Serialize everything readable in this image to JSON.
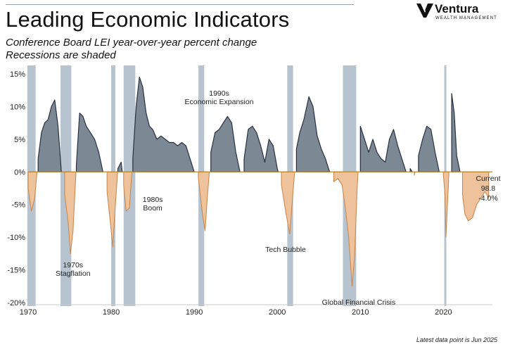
{
  "header": {
    "title": "Leading Economic Indicators",
    "subtitle_line1": "Conference Board LEI year-over-year percent change",
    "subtitle_line2": "Recessions are shaded"
  },
  "logo": {
    "name": "Ventura",
    "tagline": "WEALTH MANAGEMENT",
    "icon": "ventura-v-icon"
  },
  "footnote": "Latest data point is Jun 2025",
  "colors": {
    "positive_fill": "#7d8895",
    "positive_line": "#283040",
    "negative_fill": "#eec39b",
    "negative_line": "#c98a52",
    "recession": "#b7c4cf",
    "zero_line": "#b8862b"
  },
  "chart_data": {
    "type": "area",
    "title": "Leading Economic Indicators",
    "subtitle": "Conference Board LEI year-over-year percent change",
    "xlabel": "",
    "ylabel": "",
    "xlim": [
      1970,
      2025.9
    ],
    "ylim": [
      -20,
      15
    ],
    "x_ticks": [
      1970,
      1980,
      1990,
      2000,
      2010,
      2020
    ],
    "y_ticks": [
      {
        "value": 15,
        "label": "15%"
      },
      {
        "value": 10,
        "label": "10%"
      },
      {
        "value": 5,
        "label": "5%"
      },
      {
        "value": 0,
        "label": "0%"
      },
      {
        "value": -5,
        "label": "-5%"
      },
      {
        "value": -10,
        "label": "-10%"
      },
      {
        "value": -15,
        "label": "-15%"
      },
      {
        "value": -20,
        "label": "-20%"
      }
    ],
    "grid": false,
    "recessions": [
      [
        1969.9,
        1970.9
      ],
      [
        1973.9,
        1975.2
      ],
      [
        1980.0,
        1980.5
      ],
      [
        1981.5,
        1982.9
      ],
      [
        1990.5,
        1991.2
      ],
      [
        2001.2,
        2001.9
      ],
      [
        2007.9,
        2009.5
      ],
      [
        2020.1,
        2020.35
      ]
    ],
    "series": [
      {
        "name": "",
        "x": [
          1970.0,
          1970.4,
          1970.8,
          1971.2,
          1971.6,
          1972.0,
          1972.4,
          1972.8,
          1973.2,
          1973.6,
          1974.0,
          1974.4,
          1974.8,
          1975.1,
          1975.4,
          1975.8,
          1976.2,
          1976.6,
          1977.0,
          1977.5,
          1978.0,
          1978.5,
          1979.0,
          1979.5,
          1980.0,
          1980.2,
          1980.4,
          1980.8,
          1981.2,
          1981.5,
          1981.8,
          1982.2,
          1982.6,
          1983.0,
          1983.4,
          1983.8,
          1984.2,
          1984.6,
          1985.0,
          1985.5,
          1986.0,
          1986.5,
          1987.0,
          1987.5,
          1988.0,
          1988.5,
          1989.0,
          1989.5,
          1990.0,
          1990.5,
          1991.0,
          1991.3,
          1991.6,
          1992.0,
          1992.5,
          1993.0,
          1993.5,
          1994.0,
          1994.5,
          1995.0,
          1995.5,
          1996.0,
          1996.5,
          1997.0,
          1997.5,
          1998.0,
          1998.5,
          1999.0,
          1999.5,
          2000.0,
          2000.5,
          2001.0,
          2001.5,
          2001.9,
          2002.3,
          2002.7,
          2003.2,
          2003.8,
          2004.3,
          2004.8,
          2005.3,
          2005.8,
          2006.3,
          2006.8,
          2007.3,
          2007.8,
          2008.2,
          2008.6,
          2009.0,
          2009.3,
          2009.6,
          2010.0,
          2010.5,
          2011.0,
          2011.5,
          2012.0,
          2012.5,
          2013.0,
          2013.5,
          2014.0,
          2014.5,
          2015.0,
          2015.5,
          2016.0,
          2016.5,
          2017.0,
          2017.5,
          2018.0,
          2018.5,
          2019.0,
          2019.5,
          2020.0,
          2020.2,
          2020.3,
          2020.6,
          2021.0,
          2021.3,
          2021.6,
          2022.0,
          2022.3,
          2022.6,
          2023.0,
          2023.5,
          2024.0,
          2024.5,
          2025.0,
          2025.45
        ],
        "values": [
          -2.5,
          -6.0,
          -4.0,
          2.0,
          6.0,
          7.5,
          8.0,
          10.0,
          11.0,
          7.0,
          0.0,
          -3.5,
          -7.5,
          -12.5,
          -9.0,
          1.0,
          9.0,
          8.5,
          7.0,
          6.0,
          5.0,
          3.0,
          0.0,
          -3.0,
          -9.0,
          -11.5,
          -7.0,
          0.5,
          1.5,
          -2.0,
          -6.0,
          -5.5,
          2.0,
          10.0,
          14.5,
          13.0,
          9.0,
          7.0,
          6.5,
          5.0,
          5.5,
          5.0,
          4.5,
          4.5,
          4.0,
          4.5,
          4.0,
          2.0,
          0.0,
          -1.0,
          -6.5,
          -9.0,
          -3.5,
          3.0,
          6.0,
          6.5,
          7.5,
          8.5,
          7.5,
          3.0,
          0.0,
          2.0,
          6.5,
          7.0,
          6.0,
          4.0,
          1.5,
          5.0,
          4.0,
          0.5,
          -2.0,
          -6.0,
          -9.5,
          -3.0,
          3.5,
          6.0,
          8.0,
          11.5,
          10.0,
          5.5,
          3.5,
          2.0,
          0.0,
          -1.5,
          -1.0,
          -2.0,
          -5.5,
          -10.0,
          -17.5,
          -13.0,
          -3.0,
          7.0,
          5.0,
          3.0,
          5.0,
          3.0,
          2.0,
          1.5,
          5.0,
          6.5,
          4.0,
          2.0,
          0.0,
          0.5,
          -0.5,
          2.5,
          5.0,
          7.0,
          6.5,
          3.0,
          0.0,
          -0.5,
          -3.5,
          -10.0,
          -2.0,
          12.0,
          9.0,
          2.5,
          0.0,
          -3.5,
          -6.5,
          -7.5,
          -7.0,
          -5.0,
          -4.0,
          -3.0,
          -4.0
        ]
      }
    ],
    "annotations": [
      {
        "text_lines": [
          "1970s",
          "Stagflation"
        ]
      },
      {
        "text_lines": [
          "1980s",
          "Boom"
        ]
      },
      {
        "text_lines": [
          "1990s",
          "Economic Expansion"
        ]
      },
      {
        "text_lines": [
          "Tech Bubble"
        ]
      },
      {
        "text_lines": [
          "Global Financial Crisis"
        ]
      },
      {
        "text_lines": [
          "Current",
          "98.8",
          "-4.0%"
        ]
      }
    ]
  }
}
